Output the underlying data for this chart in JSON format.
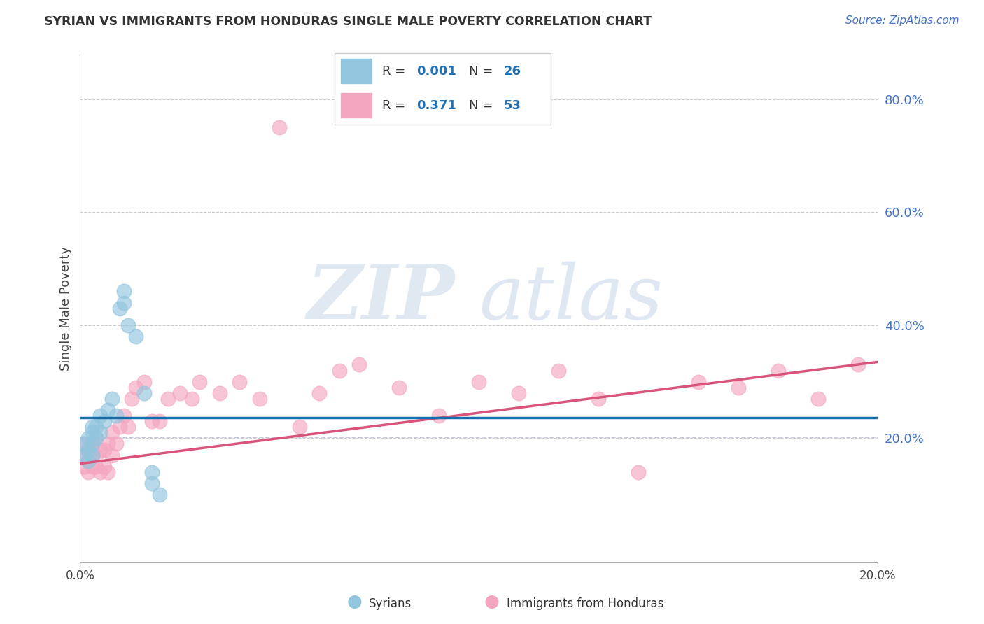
{
  "title": "SYRIAN VS IMMIGRANTS FROM HONDURAS SINGLE MALE POVERTY CORRELATION CHART",
  "source": "Source: ZipAtlas.com",
  "ylabel": "Single Male Poverty",
  "blue_color": "#92c5de",
  "pink_color": "#f4a6c0",
  "blue_line_color": "#1a6faf",
  "pink_line_color": "#d9547a",
  "dash_line_color": "#aaaacc",
  "xlim": [
    0.0,
    0.2
  ],
  "ylim": [
    -0.02,
    0.88
  ],
  "ytick_values": [
    0.2,
    0.4,
    0.6,
    0.8
  ],
  "ytick_labels": [
    "20.0%",
    "40.0%",
    "60.0%",
    "80.0%"
  ],
  "legend_R_blue": "0.001",
  "legend_N_blue": "26",
  "legend_R_pink": "0.371",
  "legend_N_pink": "53",
  "syr_x": [
    0.001,
    0.001,
    0.002,
    0.002,
    0.002,
    0.003,
    0.003,
    0.003,
    0.003,
    0.004,
    0.004,
    0.005,
    0.005,
    0.006,
    0.007,
    0.008,
    0.009,
    0.01,
    0.011,
    0.011,
    0.012,
    0.014,
    0.016,
    0.018,
    0.018,
    0.02
  ],
  "syr_y": [
    0.17,
    0.19,
    0.16,
    0.18,
    0.2,
    0.17,
    0.19,
    0.21,
    0.22,
    0.2,
    0.22,
    0.21,
    0.24,
    0.23,
    0.25,
    0.27,
    0.24,
    0.43,
    0.44,
    0.46,
    0.4,
    0.38,
    0.28,
    0.12,
    0.14,
    0.1
  ],
  "hon_x": [
    0.001,
    0.001,
    0.001,
    0.002,
    0.002,
    0.002,
    0.003,
    0.003,
    0.003,
    0.004,
    0.004,
    0.004,
    0.005,
    0.005,
    0.006,
    0.006,
    0.007,
    0.007,
    0.008,
    0.008,
    0.009,
    0.01,
    0.011,
    0.012,
    0.013,
    0.014,
    0.016,
    0.018,
    0.02,
    0.022,
    0.025,
    0.028,
    0.03,
    0.035,
    0.04,
    0.045,
    0.05,
    0.055,
    0.06,
    0.065,
    0.07,
    0.08,
    0.09,
    0.1,
    0.11,
    0.12,
    0.13,
    0.14,
    0.155,
    0.165,
    0.175,
    0.185,
    0.195
  ],
  "hon_y": [
    0.15,
    0.17,
    0.19,
    0.14,
    0.16,
    0.18,
    0.15,
    0.17,
    0.19,
    0.15,
    0.17,
    0.2,
    0.14,
    0.18,
    0.15,
    0.18,
    0.14,
    0.19,
    0.17,
    0.21,
    0.19,
    0.22,
    0.24,
    0.22,
    0.27,
    0.29,
    0.3,
    0.23,
    0.23,
    0.27,
    0.28,
    0.27,
    0.3,
    0.28,
    0.3,
    0.27,
    0.75,
    0.22,
    0.28,
    0.32,
    0.33,
    0.29,
    0.24,
    0.3,
    0.28,
    0.32,
    0.27,
    0.14,
    0.3,
    0.29,
    0.32,
    0.27,
    0.33
  ],
  "syr_line_y0": 0.236,
  "syr_line_y1": 0.236,
  "hon_line_y0": 0.155,
  "hon_line_y1": 0.335
}
